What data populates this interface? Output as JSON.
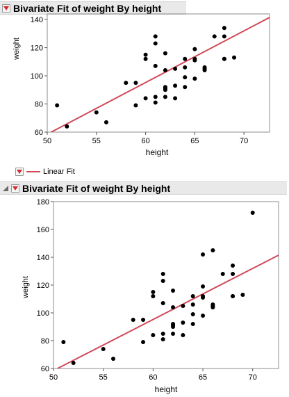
{
  "top_report": {
    "title": "Bivariate Fit of weight By height",
    "xlabel": "height",
    "ylabel": "weight",
    "x_ticks": [
      "50",
      "55",
      "60",
      "65",
      "70"
    ],
    "y_ticks": [
      "60",
      "80",
      "100",
      "120",
      "140"
    ]
  },
  "legend": {
    "label": "Linear Fit",
    "line_color": "#d04a57"
  },
  "bottom_report": {
    "title": "Bivariate Fit of weight By height",
    "xlabel": "height",
    "ylabel": "weight",
    "x_ticks": [
      "50",
      "55",
      "60",
      "65",
      "70"
    ],
    "y_ticks": [
      "60",
      "80",
      "100",
      "120",
      "140",
      "160",
      "180"
    ]
  },
  "chart_data": [
    {
      "type": "scatter",
      "xlabel": "height",
      "ylabel": "weight",
      "xlim": [
        50,
        72.6
      ],
      "ylim": [
        60,
        144
      ],
      "grid": false,
      "fit_line": {
        "name": "Linear Fit",
        "color": "#d04a57",
        "x": [
          50.4,
          72.6
        ],
        "y": [
          60,
          141.5
        ]
      },
      "points": {
        "x": [
          51,
          52,
          55,
          56,
          58,
          59,
          59,
          60,
          60,
          60,
          61,
          61,
          61,
          61,
          61,
          62,
          62,
          62,
          62,
          62,
          62,
          63,
          63,
          63,
          64,
          64,
          64,
          64,
          65,
          65,
          65,
          65,
          66,
          66,
          66,
          67,
          68,
          68,
          68,
          68,
          69
        ],
        "y": [
          79,
          64,
          74,
          67,
          95,
          79,
          95,
          84,
          112,
          115,
          81,
          107,
          123,
          128,
          85,
          91,
          92,
          104,
          116,
          85,
          90,
          93,
          84,
          105,
          99,
          106,
          112,
          92,
          98,
          111,
          119,
          112,
          105,
          106,
          104,
          128,
          134,
          128,
          112,
          112,
          113
        ]
      }
    },
    {
      "type": "scatter",
      "xlabel": "height",
      "ylabel": "weight",
      "xlim": [
        50,
        72.6
      ],
      "ylim": [
        60,
        180
      ],
      "grid": false,
      "fit_line": {
        "name": "Linear Fit",
        "color": "#d04a57",
        "x": [
          50.4,
          72.6
        ],
        "y": [
          60,
          141.5
        ]
      },
      "points": {
        "x": [
          51,
          52,
          55,
          56,
          58,
          59,
          59,
          60,
          60,
          60,
          61,
          61,
          61,
          61,
          61,
          62,
          62,
          62,
          62,
          62,
          62,
          63,
          63,
          63,
          64,
          64,
          64,
          64,
          65,
          65,
          65,
          65,
          65,
          66,
          66,
          66,
          66,
          67,
          68,
          68,
          68,
          68,
          69,
          70
        ],
        "y": [
          79,
          64,
          74,
          67,
          95,
          79,
          95,
          84,
          112,
          115,
          81,
          107,
          123,
          128,
          85,
          91,
          92,
          104,
          116,
          85,
          90,
          93,
          84,
          105,
          99,
          106,
          112,
          92,
          98,
          111,
          119,
          112,
          142,
          105,
          106,
          104,
          145,
          128,
          134,
          128,
          112,
          112,
          113,
          172
        ]
      }
    }
  ]
}
